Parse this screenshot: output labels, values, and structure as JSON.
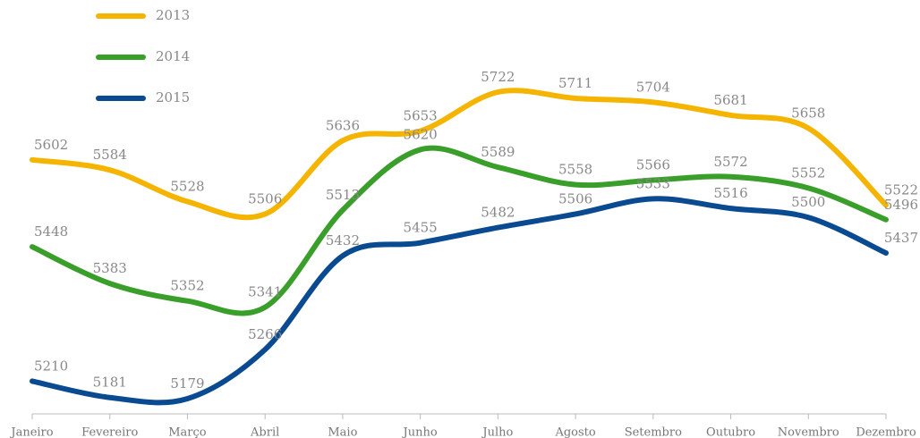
{
  "chart_data": {
    "type": "line",
    "categories": [
      "Janeiro",
      "Fevereiro",
      "Março",
      "Abril",
      "Maio",
      "Junho",
      "Julho",
      "Agosto",
      "Setembro",
      "Outubro",
      "Novembro",
      "Dezembro"
    ],
    "series": [
      {
        "name": "2013",
        "color": "#f5b400",
        "values": [
          5602,
          5584,
          5528,
          5506,
          5636,
          5653,
          5722,
          5711,
          5704,
          5681,
          5658,
          5522
        ]
      },
      {
        "name": "2014",
        "color": "#3a9e2a",
        "values": [
          5448,
          5383,
          5352,
          5341,
          5513,
          5620,
          5589,
          5558,
          5566,
          5572,
          5552,
          5496
        ]
      },
      {
        "name": "2015",
        "color": "#0a4a90",
        "values": [
          5210,
          5181,
          5179,
          5266,
          5432,
          5455,
          5482,
          5506,
          5533,
          5516,
          5500,
          5437
        ]
      }
    ],
    "legend": "top-left"
  }
}
